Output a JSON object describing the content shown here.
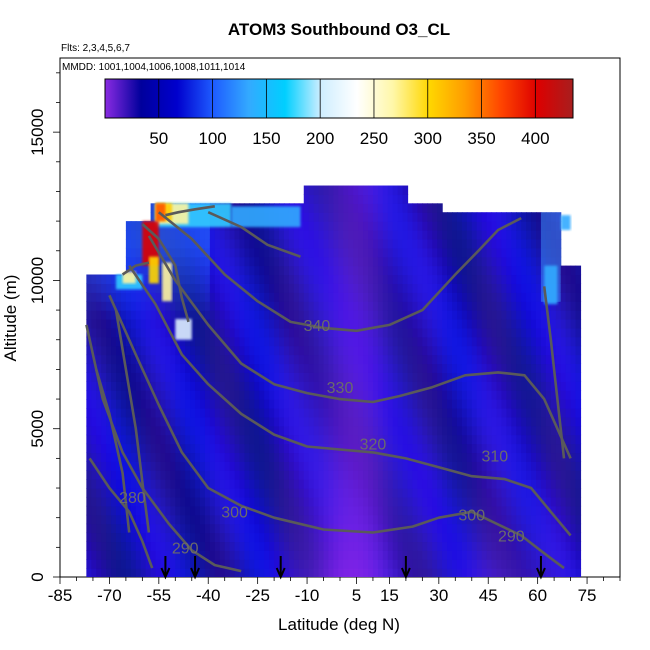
{
  "chart_data": {
    "type": "heatmap",
    "title": "ATOM3 Southbound O3_CL",
    "subtitle_flights": "Flts: 2,3,4,5,6,7",
    "subtitle_dates": "MMDD: 1001,1004,1006,1008,1011,1014",
    "xlabel": "Latitude (deg N)",
    "ylabel": "Altitude (m)",
    "xlim": [
      -85,
      85
    ],
    "ylim": [
      0,
      17500
    ],
    "x_ticks": [
      -85,
      -70,
      -55,
      -40,
      -25,
      -10,
      5,
      15,
      30,
      45,
      60,
      75
    ],
    "y_ticks": [
      0,
      5000,
      10000,
      15000
    ],
    "colorbar": {
      "range": [
        0,
        435
      ],
      "ticks": [
        50,
        100,
        150,
        200,
        250,
        300,
        350,
        400
      ],
      "colors": [
        "#8a2be2",
        "#00009c",
        "#0000cd",
        "#1e5bff",
        "#33aaff",
        "#00cfff",
        "#cfeeff",
        "#ffffff",
        "#fff7a8",
        "#ffd700",
        "#ff9c00",
        "#ff4500",
        "#dd0000",
        "#a81e1e"
      ]
    },
    "contour_labels": [
      {
        "label": "280",
        "lat": -63,
        "alt": 2500
      },
      {
        "label": "290",
        "lat": -47,
        "alt": 800
      },
      {
        "label": "300",
        "lat": -32,
        "alt": 2000
      },
      {
        "label": "320",
        "lat": 10,
        "alt": 4300
      },
      {
        "label": "330",
        "lat": 0,
        "alt": 6200
      },
      {
        "label": "340",
        "lat": -7,
        "alt": 8300
      },
      {
        "label": "310",
        "lat": 47,
        "alt": 3900
      },
      {
        "label": "300",
        "lat": 40,
        "alt": 1900
      },
      {
        "label": "290",
        "lat": 52,
        "alt": 1200
      }
    ],
    "flight_markers_lat": [
      -53,
      -44,
      -18,
      20,
      61
    ]
  }
}
